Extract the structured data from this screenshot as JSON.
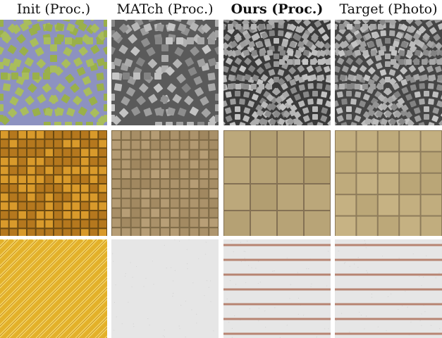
{
  "headers": [
    {
      "label": "Init (Proc.)",
      "bold": false
    },
    {
      "label": "MATch (Proc.)",
      "bold": false
    },
    {
      "label": "Ours (Proc.)",
      "bold": true
    },
    {
      "label": "Target (Photo)",
      "bold": false
    }
  ],
  "rows": [
    {
      "material": "cobblestone",
      "tiles": [
        "init-cobblestone",
        "match-cobblestone",
        "ours-cobblestone",
        "target-cobblestone"
      ]
    },
    {
      "material": "floor-tiles",
      "tiles": [
        "init-tiles",
        "match-tiles",
        "ours-tiles",
        "target-tiles"
      ]
    },
    {
      "material": "striped-paper",
      "tiles": [
        "init-stripes",
        "match-stripes",
        "ours-stripes",
        "target-stripes"
      ]
    }
  ],
  "colors": {
    "cobble_init_bg": "#8d92c0",
    "cobble_init_stone": "#9ab04a",
    "cobble_gray_bg": "#3a3a3a",
    "cobble_gray_stone": "#a8a8a8",
    "tile_init_dark": "#6b4a12",
    "tile_init_light": "#d99a2b",
    "tile_match": "#a48a60",
    "tile_ours": "#b59b6a",
    "stripe_init_a": "#e3b12a",
    "stripe_init_b": "#f4d76a",
    "paper": "#e6e6e6",
    "paper_line": "#b78472"
  }
}
